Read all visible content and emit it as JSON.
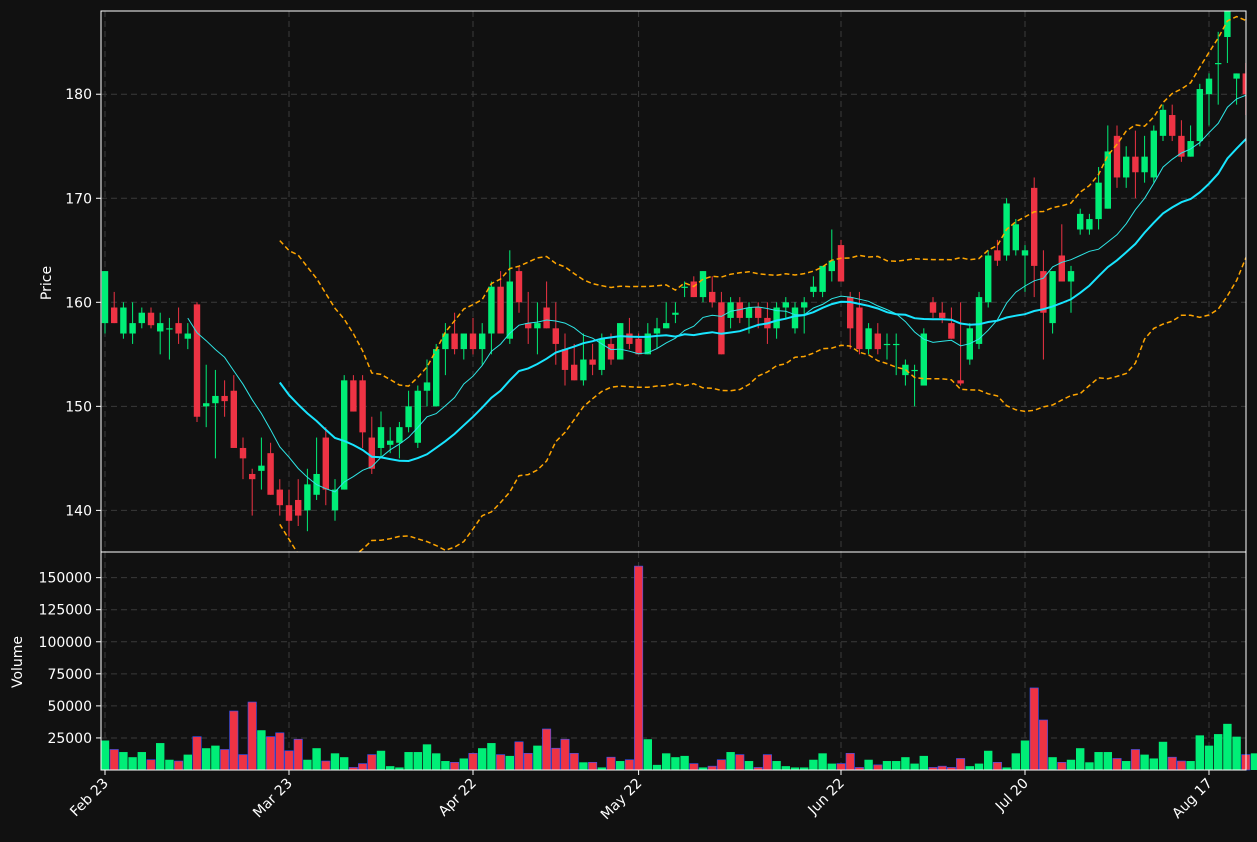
{
  "colors": {
    "background": "#111111",
    "axis": "#ffffff",
    "grid": "#3a3a3a",
    "up": "#00ee77",
    "down": "#ee3344",
    "ma_fast": "#2ee6e6",
    "ma_slow": "#18e5ff",
    "bands": "#ffa500"
  },
  "chart_data": {
    "type": "candlestick",
    "price_panel": {
      "ylabel": "Price",
      "ylim": [
        136,
        188
      ],
      "yticks": [
        140,
        150,
        160,
        170,
        180
      ],
      "grid": true
    },
    "volume_panel": {
      "ylabel": "Volume",
      "ylim": [
        0,
        170000
      ],
      "yticks": [
        25000,
        50000,
        75000,
        100000,
        125000,
        150000
      ],
      "ytick_labels": [
        "25000",
        "50000",
        "75000",
        "100000",
        "125000",
        "150000"
      ],
      "grid": true
    },
    "xticks": [
      {
        "label": "Feb 23",
        "index": 0
      },
      {
        "label": "Mar 23",
        "index": 20
      },
      {
        "label": "Apr 22",
        "index": 40
      },
      {
        "label": "May 22",
        "index": 58
      },
      {
        "label": "Jun 22",
        "index": 80
      },
      {
        "label": "Jul 20",
        "index": 100
      },
      {
        "label": "Aug 17",
        "index": 120
      }
    ],
    "indicators": [
      {
        "type": "moving-average",
        "period": 10
      },
      {
        "type": "moving-average",
        "period": 20
      },
      {
        "type": "bollinger-bands",
        "period": 20
      }
    ],
    "ohlc": [
      [
        "Feb 23",
        158.0,
        163.0,
        157.0,
        163.0,
        23000
      ],
      [
        "",
        159.5,
        161.0,
        158.0,
        158.0,
        16000
      ],
      [
        "",
        157.0,
        160.0,
        156.5,
        159.5,
        14000
      ],
      [
        "",
        157.0,
        160.0,
        156.0,
        158.0,
        10000
      ],
      [
        "",
        158.0,
        159.5,
        157.5,
        159.0,
        14000
      ],
      [
        "",
        159.0,
        159.5,
        157.5,
        157.8,
        8000
      ],
      [
        "",
        157.2,
        159.0,
        155.0,
        158.0,
        21000
      ],
      [
        "",
        157.5,
        158.5,
        154.5,
        157.5,
        8000
      ],
      [
        "",
        158.0,
        159.5,
        156.0,
        157.0,
        7000
      ],
      [
        "",
        156.5,
        158.0,
        155.5,
        157.0,
        12000
      ],
      [
        "",
        159.8,
        160.0,
        148.5,
        149.0,
        26000
      ],
      [
        "",
        150.0,
        154.0,
        148.0,
        150.3,
        17000
      ],
      [
        "",
        150.3,
        153.5,
        145.0,
        151.0,
        19000
      ],
      [
        "",
        151.0,
        152.5,
        149.0,
        150.5,
        16000
      ],
      [
        "",
        151.5,
        153.0,
        146.0,
        146.0,
        46000
      ],
      [
        "",
        146.0,
        147.0,
        143.0,
        145.0,
        12000
      ],
      [
        "",
        143.5,
        144.0,
        139.5,
        143.0,
        53000
      ],
      [
        "",
        143.8,
        147.0,
        142.0,
        144.3,
        31000
      ],
      [
        "",
        145.5,
        146.5,
        141.5,
        141.5,
        26000
      ],
      [
        "",
        142.0,
        143.0,
        139.5,
        140.5,
        29000
      ],
      [
        "Mar 23",
        140.5,
        142.0,
        137.5,
        139.0,
        15000
      ],
      [
        "",
        141.0,
        143.0,
        138.5,
        139.5,
        24000
      ],
      [
        "",
        140.0,
        144.0,
        138.0,
        142.5,
        8000
      ],
      [
        "",
        141.5,
        147.0,
        141.0,
        143.5,
        17000
      ],
      [
        "",
        147.0,
        148.0,
        140.5,
        142.0,
        7000
      ],
      [
        "",
        140.0,
        143.0,
        139.0,
        142.0,
        13000
      ],
      [
        "",
        142.0,
        153.0,
        142.0,
        152.5,
        10000
      ],
      [
        "",
        152.5,
        153.0,
        149.5,
        149.5,
        2000
      ],
      [
        "",
        152.5,
        153.0,
        146.0,
        147.5,
        5000
      ],
      [
        "",
        147.0,
        149.0,
        143.5,
        144.0,
        12000
      ],
      [
        "",
        146.0,
        149.5,
        145.0,
        148.0,
        15000
      ],
      [
        "",
        146.3,
        148.0,
        145.5,
        146.7,
        3000
      ],
      [
        "",
        146.5,
        148.5,
        145.0,
        148.0,
        2000
      ],
      [
        "",
        148.0,
        151.5,
        147.5,
        150.0,
        14000
      ],
      [
        "",
        146.5,
        152.0,
        146.0,
        151.5,
        14000
      ],
      [
        "",
        151.5,
        154.5,
        150.0,
        152.3,
        20000
      ],
      [
        "",
        150.0,
        156.0,
        150.0,
        155.5,
        13000
      ],
      [
        "",
        155.5,
        158.0,
        153.0,
        157.0,
        7000
      ],
      [
        "",
        157.0,
        159.0,
        155.0,
        155.5,
        6000
      ],
      [
        "",
        155.5,
        157.0,
        154.5,
        157.0,
        9000
      ],
      [
        "Apr 22",
        157.0,
        158.5,
        155.0,
        155.5,
        13000
      ],
      [
        "",
        155.5,
        158.0,
        154.0,
        157.0,
        17000
      ],
      [
        "",
        157.0,
        162.0,
        155.0,
        161.5,
        21000
      ],
      [
        "",
        161.5,
        163.0,
        157.5,
        157.0,
        12000
      ],
      [
        "",
        156.5,
        165.0,
        156.0,
        162.0,
        11000
      ],
      [
        "",
        163.0,
        163.5,
        159.0,
        160.0,
        22000
      ],
      [
        "",
        158.0,
        161.0,
        156.0,
        157.5,
        13000
      ],
      [
        "",
        157.5,
        160.0,
        155.0,
        158.0,
        19000
      ],
      [
        "",
        159.5,
        162.0,
        157.5,
        157.5,
        32000
      ],
      [
        "",
        157.5,
        160.0,
        154.0,
        156.0,
        17000
      ],
      [
        "",
        155.5,
        157.0,
        152.0,
        153.5,
        24000
      ],
      [
        "",
        154.0,
        156.0,
        152.5,
        152.5,
        13000
      ],
      [
        "",
        152.5,
        157.0,
        152.0,
        154.5,
        6000
      ],
      [
        "",
        154.5,
        156.0,
        153.0,
        154.0,
        6000
      ],
      [
        "",
        153.5,
        157.0,
        153.0,
        156.5,
        2000
      ],
      [
        "",
        156.0,
        157.0,
        154.0,
        154.5,
        10000
      ],
      [
        "",
        154.5,
        158.0,
        154.5,
        158.0,
        7000
      ],
      [
        "",
        157.0,
        158.5,
        155.5,
        156.0,
        8000
      ],
      [
        "May 22",
        156.5,
        157.0,
        155.0,
        155.0,
        159000
      ],
      [
        "",
        155.0,
        158.0,
        155.0,
        157.0,
        24000
      ],
      [
        "",
        157.0,
        158.5,
        155.5,
        157.5,
        4000
      ],
      [
        "",
        157.5,
        160.0,
        157.5,
        158.0,
        13000
      ],
      [
        "",
        158.8,
        160.0,
        158.0,
        159.0,
        10000
      ],
      [
        "",
        161.5,
        162.0,
        160.5,
        161.5,
        11000
      ],
      [
        "",
        162.0,
        162.5,
        160.5,
        160.5,
        5000
      ],
      [
        "",
        160.5,
        163.0,
        160.0,
        163.0,
        2000
      ],
      [
        "",
        161.0,
        162.5,
        159.5,
        160.0,
        3000
      ],
      [
        "",
        160.0,
        161.0,
        155.0,
        155.0,
        8000
      ],
      [
        "",
        158.5,
        160.5,
        157.5,
        160.0,
        14000
      ],
      [
        "",
        160.0,
        160.5,
        158.0,
        158.5,
        12000
      ],
      [
        "",
        158.5,
        160.0,
        157.0,
        159.5,
        7000
      ],
      [
        "",
        159.5,
        160.0,
        157.5,
        158.5,
        2000
      ],
      [
        "",
        158.5,
        160.0,
        156.0,
        157.5,
        12000
      ],
      [
        "",
        157.5,
        160.0,
        156.5,
        159.5,
        7000
      ],
      [
        "",
        159.5,
        160.5,
        158.5,
        160.0,
        3000
      ],
      [
        "",
        157.5,
        160.0,
        157.0,
        159.5,
        2000
      ],
      [
        "",
        159.5,
        160.5,
        157.0,
        160.0,
        2000
      ],
      [
        "",
        161.0,
        162.5,
        160.5,
        161.5,
        8000
      ],
      [
        "",
        161.0,
        163.5,
        160.5,
        163.5,
        13000
      ],
      [
        "",
        163.0,
        167.0,
        162.0,
        164.0,
        5000
      ],
      [
        "Jun 22",
        165.5,
        166.0,
        162.0,
        162.0,
        5000
      ],
      [
        "",
        160.5,
        161.0,
        155.5,
        157.5,
        13000
      ],
      [
        "",
        159.5,
        161.0,
        155.0,
        155.5,
        2000
      ],
      [
        "",
        155.5,
        158.0,
        155.0,
        157.5,
        8000
      ],
      [
        "",
        157.0,
        158.0,
        155.0,
        155.5,
        4000
      ],
      [
        "",
        156.0,
        157.0,
        154.5,
        156.0,
        7000
      ],
      [
        "",
        156.0,
        157.0,
        153.0,
        156.0,
        7000
      ],
      [
        "",
        153.0,
        154.5,
        152.0,
        154.0,
        10000
      ],
      [
        "",
        153.5,
        154.0,
        150.0,
        153.5,
        5000
      ],
      [
        "",
        152.0,
        157.5,
        152.0,
        157.0,
        11000
      ],
      [
        "",
        160.0,
        160.5,
        158.5,
        159.0,
        2000
      ],
      [
        "",
        159.0,
        160.0,
        158.0,
        158.5,
        3000
      ],
      [
        "",
        158.0,
        159.5,
        156.5,
        156.5,
        2000
      ],
      [
        "",
        152.5,
        160.0,
        152.0,
        152.2,
        9000
      ],
      [
        "",
        154.5,
        158.0,
        154.0,
        157.5,
        3000
      ],
      [
        "",
        156.0,
        161.0,
        155.5,
        160.5,
        5000
      ],
      [
        "",
        160.0,
        165.0,
        159.5,
        164.5,
        15000
      ],
      [
        "",
        165.0,
        166.0,
        163.5,
        164.0,
        6000
      ],
      [
        "",
        164.5,
        170.0,
        164.0,
        169.5,
        2000
      ],
      [
        "",
        165.0,
        168.0,
        164.5,
        167.5,
        13000
      ],
      [
        "Jul 20",
        164.5,
        165.5,
        161.0,
        165.0,
        23000
      ],
      [
        "",
        171.0,
        172.0,
        160.5,
        163.5,
        64000
      ],
      [
        "",
        163.0,
        165.0,
        154.5,
        159.0,
        39000
      ],
      [
        "",
        158.0,
        163.0,
        157.0,
        163.0,
        10000
      ],
      [
        "",
        164.5,
        167.5,
        162.0,
        162.0,
        6000
      ],
      [
        "",
        162.0,
        163.5,
        159.0,
        163.0,
        8000
      ],
      [
        "",
        167.0,
        169.0,
        166.5,
        168.5,
        17000
      ],
      [
        "",
        167.0,
        168.5,
        166.5,
        168.0,
        6000
      ],
      [
        "",
        168.0,
        173.0,
        167.0,
        171.5,
        14000
      ],
      [
        "",
        169.0,
        177.0,
        169.0,
        174.5,
        14000
      ],
      [
        "",
        176.0,
        177.0,
        171.0,
        172.0,
        9000
      ],
      [
        "",
        172.0,
        175.0,
        171.0,
        174.0,
        7000
      ],
      [
        "",
        174.0,
        176.5,
        170.0,
        172.5,
        16000
      ],
      [
        "",
        172.5,
        176.0,
        171.5,
        174.0,
        12000
      ],
      [
        "",
        172.0,
        177.0,
        171.5,
        176.5,
        9000
      ],
      [
        "",
        176.0,
        179.0,
        175.5,
        178.5,
        22000
      ],
      [
        "",
        178.0,
        179.0,
        175.5,
        176.0,
        10000
      ],
      [
        "",
        176.0,
        177.5,
        173.5,
        174.0,
        7000
      ],
      [
        "",
        174.0,
        177.0,
        174.0,
        175.5,
        7000
      ],
      [
        "",
        175.5,
        181.0,
        175.0,
        180.5,
        27000
      ],
      [
        "",
        180.0,
        182.0,
        177.0,
        181.5,
        19000
      ],
      [
        "Aug 17",
        183.0,
        186.0,
        179.0,
        183.0,
        28000
      ],
      [
        "",
        185.5,
        188.0,
        183.0,
        188.0,
        36000
      ],
      [
        "",
        181.5,
        182.0,
        179.0,
        182.0,
        26000
      ],
      [
        "",
        182.0,
        183.0,
        178.0,
        180.0,
        12000
      ],
      [
        "",
        180.0,
        185.0,
        179.5,
        181.0,
        13000
      ]
    ]
  }
}
